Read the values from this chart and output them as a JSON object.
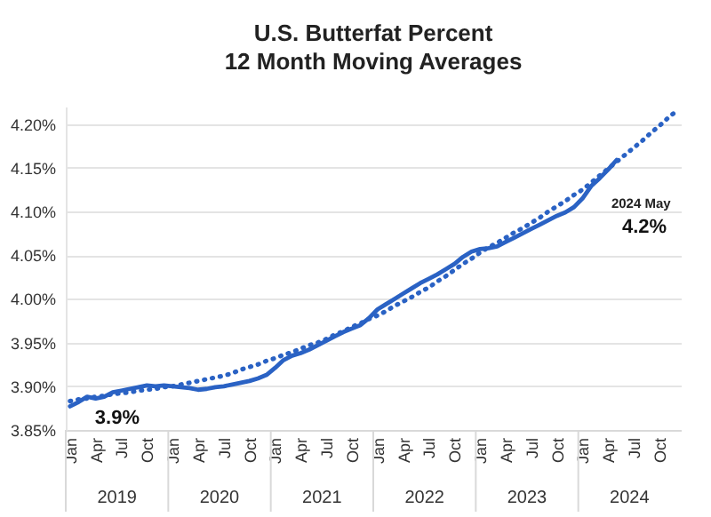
{
  "chart_data": {
    "type": "line",
    "title": "U.S. Butterfat Percent",
    "subtitle": "12 Month Moving Averages",
    "categories": [
      "Jan",
      null,
      null,
      "Apr",
      null,
      null,
      "Jul",
      null,
      null,
      "Oct",
      null,
      null,
      "Jan",
      null,
      null,
      "Apr",
      null,
      null,
      "Jul",
      null,
      null,
      "Oct",
      null,
      null,
      "Jan",
      null,
      null,
      "Apr",
      null,
      null,
      "Jul",
      null,
      null,
      "Oct",
      null,
      null,
      "Jan",
      null,
      null,
      "Apr",
      null,
      null,
      "Jul",
      null,
      null,
      "Oct",
      null,
      null,
      "Jan",
      null,
      null,
      "Apr",
      null,
      null,
      "Jul",
      null,
      null,
      "Oct",
      null,
      null,
      "Jan",
      null,
      null,
      "Apr",
      null,
      null,
      "Jul",
      null,
      null,
      "Oct",
      null,
      null
    ],
    "series": [
      {
        "color": "#2a62c4",
        "values": [
          3.877,
          3.882,
          3.888,
          3.886,
          3.888,
          3.893,
          3.895,
          3.897,
          3.899,
          3.901,
          3.9,
          3.901,
          3.9,
          3.899,
          3.898,
          3.896,
          3.897,
          3.899,
          3.9,
          3.902,
          3.904,
          3.906,
          3.909,
          3.913,
          3.921,
          3.93,
          3.935,
          3.938,
          3.942,
          3.947,
          3.952,
          3.957,
          3.962,
          3.966,
          3.97,
          3.978,
          3.988,
          3.994,
          4.0,
          4.006,
          4.012,
          4.018,
          4.023,
          4.028,
          4.034,
          4.04,
          4.048,
          4.054,
          4.057,
          4.058,
          4.06,
          4.065,
          4.07,
          4.075,
          4.08,
          4.085,
          4.09,
          4.095,
          4.099,
          4.105,
          4.115,
          4.129,
          4.138,
          4.148,
          4.159,
          null,
          null,
          null,
          null,
          null,
          null,
          null
        ],
        "value_labels": [
          "3.9%",
          null,
          null,
          null,
          null,
          null,
          null,
          null,
          null,
          null,
          null,
          null,
          null,
          null,
          null,
          null,
          null,
          null,
          null,
          null,
          null,
          null,
          null,
          null,
          null,
          null,
          null,
          null,
          null,
          null,
          null,
          null,
          null,
          null,
          null,
          null,
          null,
          null,
          null,
          null,
          null,
          null,
          null,
          null,
          null,
          null,
          null,
          null,
          null,
          null,
          null,
          null,
          null,
          null,
          null,
          null,
          null,
          null,
          null,
          null,
          null,
          null,
          null,
          null,
          "4.2%",
          null,
          null,
          null,
          null,
          null,
          null,
          null
        ]
      },
      {
        "type": "line",
        "line_style": "dotted",
        "color": "#2a62c4",
        "values": [
          3.883,
          3.885,
          3.886,
          3.888,
          3.889,
          3.891,
          3.892,
          3.893,
          3.895,
          3.896,
          3.897,
          3.899,
          3.9,
          3.902,
          3.904,
          3.906,
          3.908,
          3.91,
          3.912,
          3.915,
          3.919,
          3.922,
          3.925,
          3.929,
          3.932,
          3.936,
          3.939,
          3.943,
          3.947,
          3.95,
          3.954,
          3.959,
          3.963,
          3.968,
          3.972,
          3.977,
          3.981,
          3.986,
          3.992,
          3.997,
          4.002,
          4.008,
          4.013,
          4.02,
          4.026,
          4.033,
          4.04,
          4.046,
          4.053,
          4.059,
          4.064,
          4.07,
          4.076,
          4.081,
          4.087,
          4.093,
          4.1,
          4.106,
          4.112,
          4.119,
          4.125,
          4.133,
          4.141,
          4.149,
          4.157,
          4.165,
          4.173,
          4.181,
          4.19,
          4.198,
          4.207,
          4.215
        ]
      }
    ],
    "ylim": [
      3.85,
      4.22
    ],
    "yticks": [
      {
        "value": 3.85,
        "label": "3.85%"
      },
      {
        "value": 3.9,
        "label": "3.90%"
      },
      {
        "value": 3.95,
        "label": "3.95%"
      },
      {
        "value": 4.0,
        "label": "4.00%"
      },
      {
        "value": 4.05,
        "label": "4.05%"
      },
      {
        "value": 4.1,
        "label": "4.10%"
      },
      {
        "value": 4.15,
        "label": "4.15%"
      },
      {
        "value": 4.2,
        "label": "4.20%"
      }
    ],
    "grid": "y",
    "annotations": [
      "2024 May",
      "2019",
      "2020",
      "2021",
      "2022",
      "2023",
      "2024"
    ]
  }
}
